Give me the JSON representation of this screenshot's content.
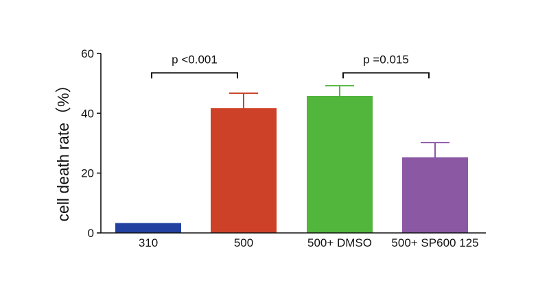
{
  "chart_data": {
    "type": "bar",
    "categories": [
      "310",
      "500",
      "500+ DMSO",
      "500+ SP600 125"
    ],
    "values": [
      3.3,
      41.7,
      45.8,
      25.3
    ],
    "errors": [
      0,
      5.0,
      3.4,
      4.9
    ],
    "colors": [
      "#2140a0",
      "#cc4127",
      "#52b53c",
      "#8b58a4"
    ],
    "title": "",
    "xlabel": "",
    "ylabel": "cell death rate（%）",
    "ylim": [
      0,
      60
    ],
    "yticks": [
      0,
      20,
      40,
      60
    ],
    "grid": false,
    "legend": "none",
    "annotations": [
      {
        "from": 0,
        "to": 1,
        "label": "p <0.001",
        "level": 53.5
      },
      {
        "from": 2,
        "to": 3,
        "label": "p =0.015",
        "level": 53.5
      }
    ]
  }
}
